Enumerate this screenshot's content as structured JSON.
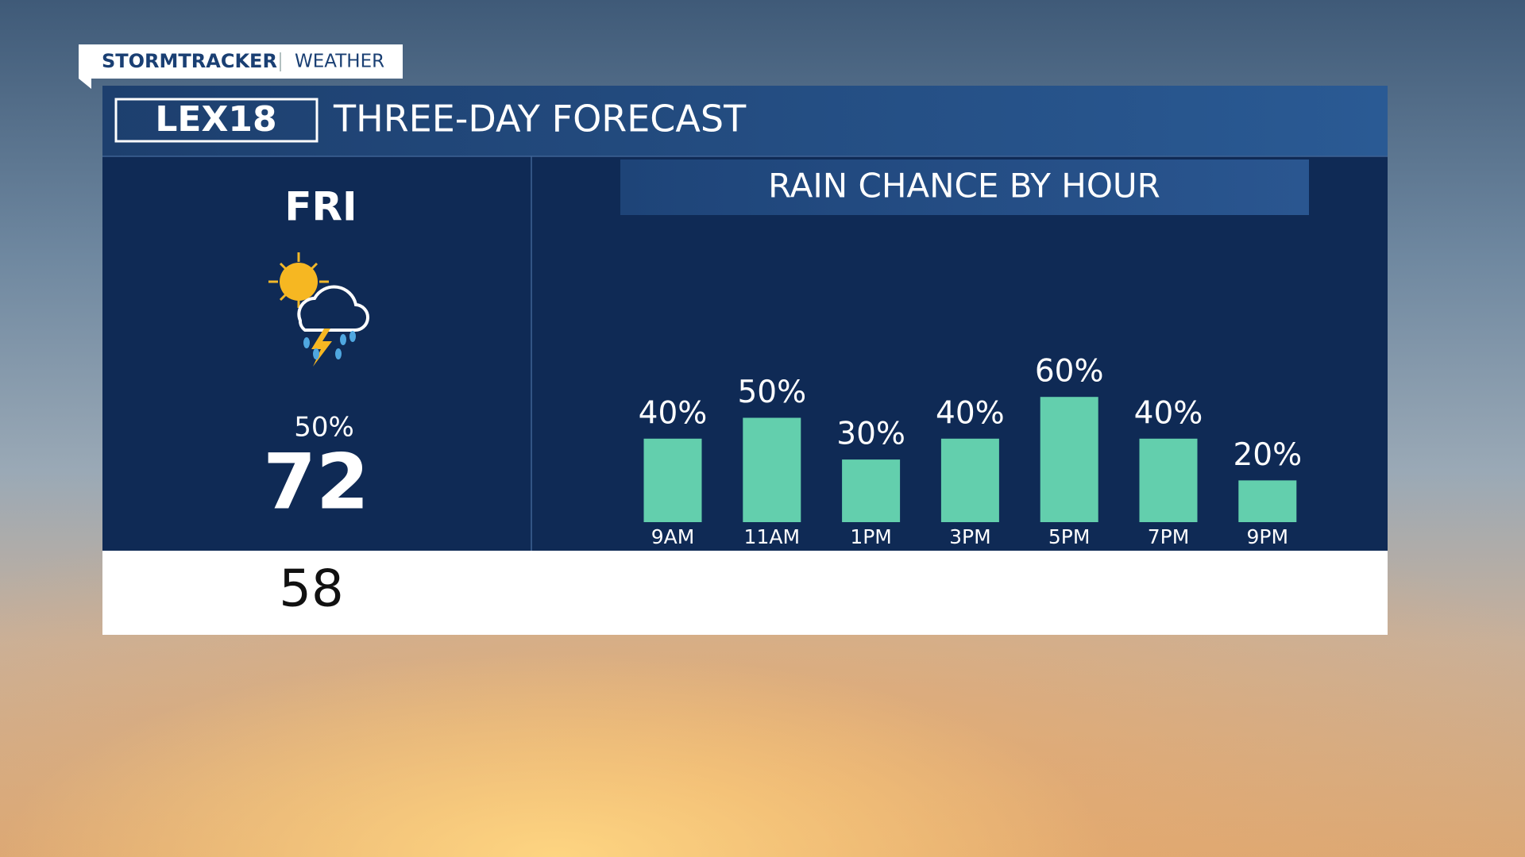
{
  "header": {
    "brand": "STORMTRACKER",
    "section": "WEATHER",
    "logo": "LEX18",
    "title": "THREE-DAY FORECAST"
  },
  "day": {
    "name": "FRI",
    "precip": "50%",
    "high": 72,
    "low": 58
  },
  "chart_data": {
    "type": "bar",
    "title": "RAIN CHANCE BY HOUR",
    "categories": [
      "9AM",
      "11AM",
      "1PM",
      "3PM",
      "5PM",
      "7PM",
      "9PM"
    ],
    "values": [
      40,
      50,
      30,
      40,
      60,
      40,
      20
    ],
    "value_labels": [
      "40%",
      "50%",
      "30%",
      "40%",
      "60%",
      "40%",
      "20%"
    ],
    "color": "#63cfad",
    "ylim": [
      0,
      100
    ]
  }
}
